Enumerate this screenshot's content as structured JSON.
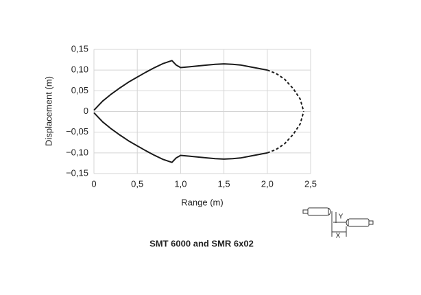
{
  "chart_data": {
    "type": "line",
    "title": "SMT 6000 and SMR 6x02",
    "xlabel": "Range (m)",
    "ylabel": "Displacement (m)",
    "annotations": [
      "Y",
      "X"
    ],
    "x": [
      0,
      0.1,
      0.2,
      0.3,
      0.4,
      0.5,
      0.6,
      0.7,
      0.8,
      0.9,
      0.95,
      1.0,
      1.1,
      1.2,
      1.3,
      1.4,
      1.5,
      1.6,
      1.7,
      1.8,
      1.9,
      2.0,
      2.1,
      2.2,
      2.3,
      2.38,
      2.42
    ],
    "series": [
      {
        "color": "#1a1a1a",
        "dashed": false,
        "values": [
          0.003,
          0.025,
          0.042,
          0.057,
          0.071,
          0.083,
          0.095,
          0.106,
          0.116,
          0.123,
          0.112,
          0.106,
          0.108,
          0.11,
          0.112,
          0.114,
          0.115,
          0.114,
          0.112,
          0.108,
          0.104,
          0.1,
          null,
          null,
          null,
          null,
          null
        ]
      },
      {
        "color": "#1a1a1a",
        "dashed": true,
        "values": [
          null,
          null,
          null,
          null,
          null,
          null,
          null,
          null,
          null,
          null,
          null,
          null,
          null,
          null,
          null,
          null,
          null,
          null,
          null,
          null,
          null,
          0.1,
          0.092,
          0.078,
          0.055,
          0.03,
          0
        ]
      },
      {
        "color": "#1a1a1a",
        "dashed": false,
        "values": [
          -0.003,
          -0.025,
          -0.042,
          -0.057,
          -0.071,
          -0.083,
          -0.095,
          -0.106,
          -0.116,
          -0.123,
          -0.112,
          -0.106,
          -0.108,
          -0.11,
          -0.112,
          -0.114,
          -0.115,
          -0.114,
          -0.112,
          -0.108,
          -0.104,
          -0.1,
          null,
          null,
          null,
          null,
          null
        ]
      },
      {
        "color": "#1a1a1a",
        "dashed": true,
        "values": [
          null,
          null,
          null,
          null,
          null,
          null,
          null,
          null,
          null,
          null,
          null,
          null,
          null,
          null,
          null,
          null,
          null,
          null,
          null,
          null,
          null,
          -0.1,
          -0.092,
          -0.078,
          -0.055,
          -0.03,
          0
        ]
      }
    ],
    "xlim": [
      0,
      2.5
    ],
    "xticks": [
      0,
      {
        "value": 0.5,
        "label": "0,5"
      },
      {
        "value": 1.0,
        "label": "1,0"
      },
      {
        "value": 1.5,
        "label": "1,5"
      },
      {
        "value": 2.0,
        "label": "2,0"
      },
      {
        "value": 2.5,
        "label": "2,5"
      }
    ],
    "ylim": [
      -0.15,
      0.15
    ],
    "yticks": [
      {
        "value": 0.15,
        "label": "0,15"
      },
      {
        "value": 0.1,
        "label": "0,10"
      },
      {
        "value": 0.05,
        "label": "0,05"
      },
      0,
      {
        "value": -0.05,
        "label": "−0,05"
      },
      {
        "value": -0.1,
        "label": "−0,10"
      },
      {
        "value": -0.15,
        "label": "−0,15"
      }
    ],
    "grid": true
  }
}
